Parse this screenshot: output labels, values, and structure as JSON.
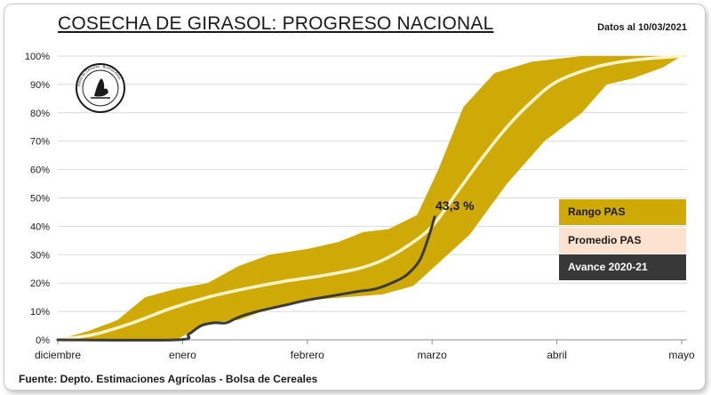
{
  "title": "COSECHA DE GIRASOL: PROGRESO NACIONAL",
  "date_note": "Datos al 10/03/2021",
  "source": "Fuente: Depto. Estimaciones Agrícolas - Bolsa de Cereales",
  "colors": {
    "range": "#cfaa06",
    "average": "#fff3c9",
    "advance": "#3b3b3b",
    "legend_average_bg": "#fde3cf",
    "legend_advance_bg": "#383838"
  },
  "logo": {
    "icon": "bolsa-de-cereales-seal-icon",
    "text": "Bolsa de Cereales - Buenos Aires"
  },
  "chart_data": {
    "type": "area",
    "x_unit": "month (0 = diciembre, 5 = mayo)",
    "x_ticks": [
      {
        "x": 0,
        "label": "diciembre"
      },
      {
        "x": 1,
        "label": "enero"
      },
      {
        "x": 2,
        "label": "febrero"
      },
      {
        "x": 3,
        "label": "marzo"
      },
      {
        "x": 4,
        "label": "abril"
      },
      {
        "x": 5,
        "label": "mayo"
      }
    ],
    "y_ticks": [
      "0%",
      "10%",
      "20%",
      "30%",
      "40%",
      "50%",
      "60%",
      "70%",
      "80%",
      "90%",
      "100%"
    ],
    "ylim": [
      0,
      100
    ],
    "xlim": [
      0,
      5
    ],
    "grid": "horizontal",
    "series": [
      {
        "name": "Rango PAS",
        "kind": "band",
        "upper": [
          [
            0,
            0
          ],
          [
            0.24,
            3
          ],
          [
            0.48,
            7
          ],
          [
            0.7,
            15
          ],
          [
            0.95,
            18
          ],
          [
            1.2,
            20
          ],
          [
            1.45,
            26
          ],
          [
            1.7,
            30
          ],
          [
            2.0,
            32
          ],
          [
            2.25,
            34.5
          ],
          [
            2.45,
            38
          ],
          [
            2.65,
            39
          ],
          [
            2.88,
            44
          ],
          [
            3.05,
            60
          ],
          [
            3.25,
            82
          ],
          [
            3.5,
            94
          ],
          [
            3.8,
            98
          ],
          [
            4.2,
            100
          ],
          [
            5.0,
            100
          ]
        ],
        "lower": [
          [
            0,
            0
          ],
          [
            0.24,
            0
          ],
          [
            0.48,
            0
          ],
          [
            0.7,
            0
          ],
          [
            0.95,
            0
          ],
          [
            1.2,
            6
          ],
          [
            1.45,
            7
          ],
          [
            1.7,
            11
          ],
          [
            2.0,
            14
          ],
          [
            2.3,
            15
          ],
          [
            2.6,
            16
          ],
          [
            2.85,
            19
          ],
          [
            3.1,
            29
          ],
          [
            3.3,
            37
          ],
          [
            3.6,
            55
          ],
          [
            3.9,
            70
          ],
          [
            4.2,
            80
          ],
          [
            4.4,
            90
          ],
          [
            4.6,
            92
          ],
          [
            4.85,
            96
          ],
          [
            5.0,
            100
          ]
        ]
      },
      {
        "name": "Promedio PAS",
        "kind": "line",
        "points": [
          [
            0,
            0
          ],
          [
            0.3,
            2
          ],
          [
            0.6,
            6
          ],
          [
            0.9,
            11
          ],
          [
            1.2,
            15
          ],
          [
            1.5,
            18
          ],
          [
            1.8,
            20.5
          ],
          [
            2.1,
            22.5
          ],
          [
            2.4,
            25
          ],
          [
            2.6,
            28
          ],
          [
            2.8,
            33
          ],
          [
            3.0,
            40
          ],
          [
            3.2,
            52
          ],
          [
            3.4,
            64
          ],
          [
            3.6,
            75
          ],
          [
            3.8,
            84
          ],
          [
            4.0,
            91
          ],
          [
            4.3,
            96
          ],
          [
            4.6,
            98.5
          ],
          [
            5.0,
            100
          ]
        ]
      },
      {
        "name": "Avance 2020-21",
        "kind": "line",
        "points": [
          [
            0,
            0
          ],
          [
            0.95,
            0
          ],
          [
            1.05,
            2
          ],
          [
            1.15,
            5
          ],
          [
            1.25,
            6
          ],
          [
            1.35,
            6
          ],
          [
            1.45,
            8
          ],
          [
            1.6,
            10
          ],
          [
            1.8,
            12
          ],
          [
            2.0,
            14
          ],
          [
            2.2,
            15.5
          ],
          [
            2.4,
            17
          ],
          [
            2.55,
            18
          ],
          [
            2.7,
            20.5
          ],
          [
            2.8,
            23
          ],
          [
            2.9,
            28
          ],
          [
            2.97,
            36
          ],
          [
            3.02,
            43.3
          ]
        ],
        "end_label": "43,3 %"
      }
    ],
    "legend": {
      "placement": "right",
      "entries": [
        "Rango PAS",
        "Promedio PAS",
        "Avance 2020-21"
      ]
    }
  }
}
